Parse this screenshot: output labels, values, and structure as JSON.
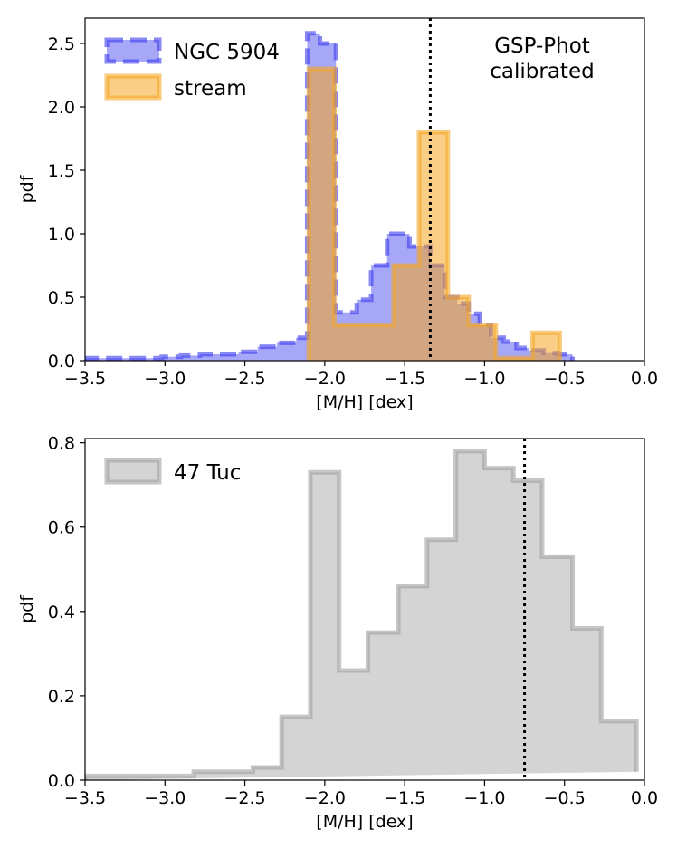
{
  "chart_data": [
    {
      "type": "histogram",
      "xlabel": "[M/H] [dex]",
      "ylabel": "pdf",
      "xlim": [
        -3.5,
        0.0
      ],
      "ylim": [
        0,
        2.7
      ],
      "xticks": [
        -3.5,
        -3.0,
        -2.5,
        -2.0,
        -1.5,
        -1.0,
        -0.5,
        0.0
      ],
      "xtick_labels": [
        "−3.5",
        "−3.0",
        "−2.5",
        "−2.0",
        "−1.5",
        "−1.0",
        "−0.5",
        "0.0"
      ],
      "yticks": [
        0.0,
        0.5,
        1.0,
        1.5,
        2.0,
        2.5
      ],
      "ytick_labels": [
        "0.0",
        "0.5",
        "1.0",
        "1.5",
        "2.0",
        "2.5"
      ],
      "vline_x": -1.34,
      "annotation": [
        "GSP-Phot",
        "calibrated"
      ],
      "legend_position": "top-left",
      "series": [
        {
          "name": "NGC 5904",
          "color": "#3b3bf0",
          "linestyle": "dashed",
          "edges": [
            -3.5,
            -3.38,
            -3.26,
            -3.14,
            -3.02,
            -2.9,
            -2.78,
            -2.66,
            -2.54,
            -2.42,
            -2.3,
            -2.18,
            -2.11,
            -2.03,
            -1.93,
            -1.8,
            -1.71,
            -1.61,
            -1.47,
            -1.34,
            -1.25,
            -1.17,
            -1.1,
            -1.03,
            -0.96,
            -0.88,
            -0.8,
            -0.72,
            -0.63,
            -0.54,
            -0.45
          ],
          "values": [
            0.02,
            0.02,
            0.02,
            0.02,
            0.03,
            0.04,
            0.05,
            0.05,
            0.07,
            0.11,
            0.14,
            0.18,
            2.58,
            2.5,
            0.38,
            0.48,
            0.75,
            1.0,
            0.9,
            0.75,
            0.5,
            0.45,
            0.37,
            0.28,
            0.18,
            0.15,
            0.1,
            0.08,
            0.06,
            0.05
          ]
        },
        {
          "name": "stream",
          "color": "#f5a623",
          "linestyle": "solid",
          "edges": [
            -2.1,
            -1.94,
            -1.57,
            -1.41,
            -1.23,
            -1.1,
            -0.93,
            -0.7,
            -0.53
          ],
          "values": [
            2.3,
            0.28,
            0.75,
            1.8,
            0.5,
            0.28,
            0.02,
            0.22
          ]
        }
      ]
    },
    {
      "type": "histogram",
      "xlabel": "[M/H] [dex]",
      "ylabel": "pdf",
      "xlim": [
        -3.5,
        0.0
      ],
      "ylim": [
        0,
        0.81
      ],
      "xticks": [
        -3.5,
        -3.0,
        -2.5,
        -2.0,
        -1.5,
        -1.0,
        -0.5,
        0.0
      ],
      "xtick_labels": [
        "−3.5",
        "−3.0",
        "−2.5",
        "−2.0",
        "−1.5",
        "−1.0",
        "−0.5",
        "0.0"
      ],
      "yticks": [
        0.0,
        0.2,
        0.4,
        0.6,
        0.8
      ],
      "ytick_labels": [
        "0.0",
        "0.2",
        "0.4",
        "0.6",
        "0.8"
      ],
      "vline_x": -0.75,
      "legend_position": "top-left",
      "series": [
        {
          "name": "47 Tuc",
          "color": "#a0a0a0",
          "linestyle": "solid",
          "edges": [
            -3.5,
            -3.36,
            -3.18,
            -3.0,
            -2.82,
            -2.64,
            -2.45,
            -2.27,
            -2.09,
            -1.91,
            -1.73,
            -1.54,
            -1.36,
            -1.18,
            -1.0,
            -0.82,
            -0.64,
            -0.45,
            -0.27,
            -0.05
          ],
          "values": [
            0.01,
            0.01,
            0.01,
            0.01,
            0.02,
            0.02,
            0.03,
            0.15,
            0.73,
            0.26,
            0.35,
            0.46,
            0.57,
            0.78,
            0.74,
            0.71,
            0.53,
            0.36,
            0.14,
            0.02
          ]
        }
      ]
    }
  ]
}
